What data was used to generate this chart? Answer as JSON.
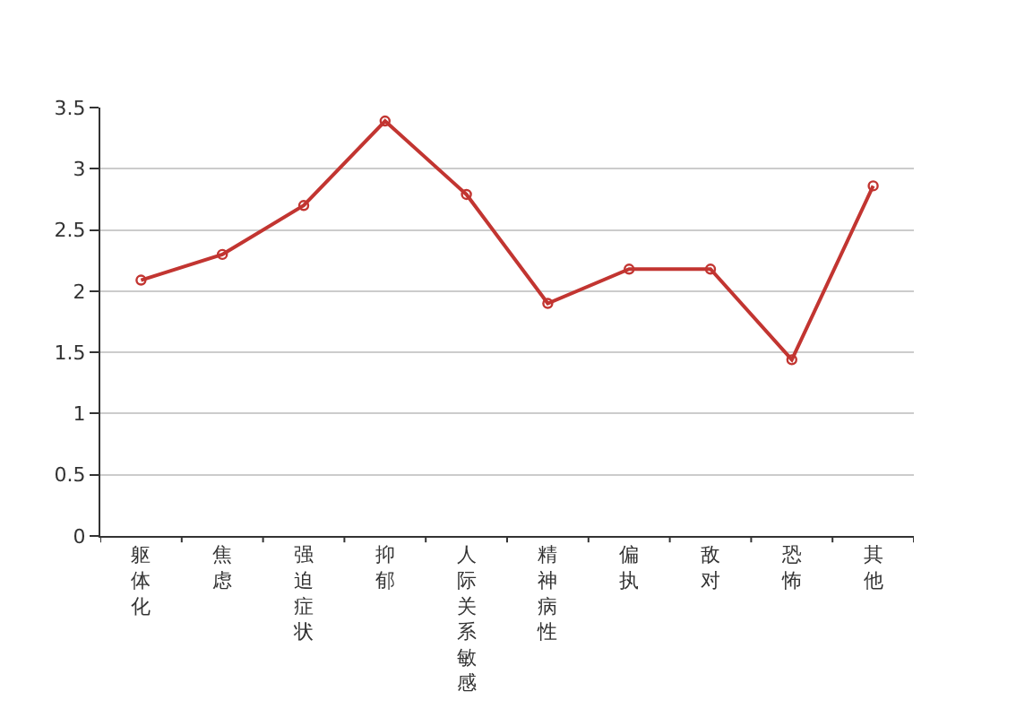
{
  "chart_data": {
    "type": "line",
    "categories": [
      "躯体化",
      "焦虑",
      "强迫症状",
      "抑郁",
      "人际关系敏感",
      "精神病性",
      "偏执",
      "敌对",
      "恐怖",
      "其他"
    ],
    "series": [
      {
        "color": "#c23531",
        "values": [
          2.09,
          2.3,
          2.7,
          3.39,
          2.79,
          1.9,
          2.18,
          2.18,
          1.44,
          2.86
        ]
      }
    ],
    "ylim": [
      0,
      3.5
    ],
    "yticks": [
      0,
      0.5,
      1,
      1.5,
      2,
      2.5,
      3,
      3.5
    ],
    "grid": "y",
    "marker": "circle",
    "line_style": "solid",
    "legend": false
  }
}
